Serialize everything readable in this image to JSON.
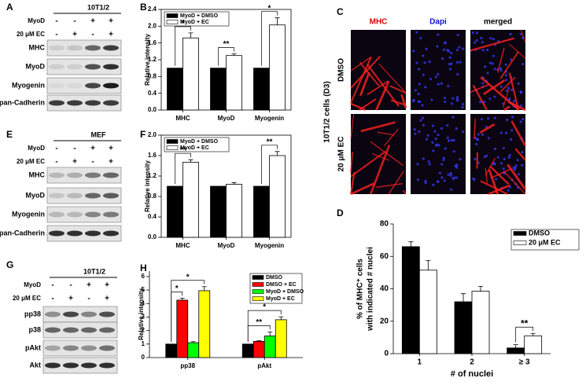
{
  "figure_labels": [
    "A",
    "B",
    "C",
    "D",
    "E",
    "F",
    "G",
    "H"
  ],
  "blots": [
    {
      "title": "10T1/2",
      "conditions": [
        {
          "label": "MyoD",
          "signs": [
            "-",
            "-",
            "+",
            "+"
          ]
        },
        {
          "label": "20 μM EC",
          "signs": [
            "-",
            "+",
            "-",
            "+"
          ]
        }
      ],
      "bands": [
        "MHC",
        "MyoD",
        "Myogenin",
        "pan-Cadherin"
      ]
    },
    {
      "title": "MEF",
      "conditions": [
        {
          "label": "MyoD",
          "signs": [
            "-",
            "-",
            "+",
            "+"
          ]
        },
        {
          "label": "20 μM EC",
          "signs": [
            "-",
            "+",
            "-",
            "+"
          ]
        }
      ],
      "bands": [
        "MHC",
        "MyoD",
        "Myogenin",
        "pan-Cadherin"
      ]
    },
    {
      "title": "10T1/2",
      "conditions": [
        {
          "label": "MyoD",
          "signs": [
            "-",
            "-",
            "+",
            "+"
          ]
        },
        {
          "label": "20 μM EC",
          "signs": [
            "-",
            "+",
            "-",
            "+"
          ]
        }
      ],
      "bands": [
        "pp38",
        "p38",
        "pAkt",
        "Akt"
      ]
    }
  ],
  "microscopy": {
    "columns": [
      "MHC",
      "Dapi",
      "merged"
    ],
    "rows": [
      "DMSO",
      "20 μM EC"
    ],
    "side_label": "10T1/2 cells (D3)"
  },
  "chart_data": [
    {
      "type": "bar",
      "ylabel": "Relative intensity",
      "categories": [
        "MHC",
        "MyoD",
        "Myogenin"
      ],
      "series": [
        {
          "name": "MyoD + DMSO",
          "color": "#000000",
          "values": [
            1,
            1,
            1
          ]
        },
        {
          "name": "MyoD + EC",
          "color": "#ffffff",
          "values": [
            1.72,
            1.3,
            2.03
          ],
          "errors": [
            0.12,
            0.04,
            0.17
          ]
        }
      ],
      "ylim": [
        0,
        2.4
      ],
      "yticks": [
        {
          "value": 0,
          "label": "0.0"
        },
        0.4,
        0.8,
        1.2,
        1.6,
        {
          "value": 2,
          "label": "2.0"
        },
        2.4
      ],
      "annotations": [
        {
          "text": "*",
          "category": 0,
          "series": [
            0,
            1
          ]
        },
        {
          "text": "**",
          "category": 1,
          "series": [
            0,
            1
          ]
        },
        {
          "text": "*",
          "category": 2,
          "series": [
            0,
            1
          ]
        }
      ]
    },
    {
      "type": "bar",
      "ylabel": "Relative intensity",
      "categories": [
        "MHC",
        "MyoD",
        "Myogenin"
      ],
      "series": [
        {
          "name": "MyoD + DMSO",
          "color": "#000000",
          "values": [
            1,
            1,
            1
          ]
        },
        {
          "name": "MyoD + EC",
          "color": "#ffffff",
          "values": [
            1.47,
            1.04,
            1.6
          ],
          "errors": [
            0.05,
            0.03,
            0.08
          ]
        }
      ],
      "ylim": [
        0,
        2
      ],
      "yticks": [
        {
          "value": 0,
          "label": "0.0"
        },
        0.4,
        0.8,
        1.2,
        1.6,
        {
          "value": 2,
          "label": "2.0"
        }
      ],
      "annotations": [
        {
          "text": "**",
          "category": 0,
          "series": [
            0,
            1
          ]
        },
        {
          "text": "**",
          "category": 2,
          "series": [
            0,
            1
          ]
        }
      ]
    },
    {
      "type": "bar",
      "ylabel": "Relative intensity",
      "categories": [
        "pp38",
        "pAkt"
      ],
      "series": [
        {
          "name": "DMSO",
          "color": "#000000",
          "values": [
            1,
            1
          ]
        },
        {
          "name": "DMSO + EC",
          "color": "#ff0000",
          "values": [
            4.25,
            1.2
          ],
          "errors": [
            0.15,
            0.05
          ]
        },
        {
          "name": "MyoD + DMSO",
          "color": "#00ff00",
          "values": [
            1.1,
            1.6
          ],
          "errors": [
            0.08,
            0.3
          ]
        },
        {
          "name": "MyoD + EC",
          "color": "#ffff00",
          "values": [
            4.95,
            2.8
          ],
          "errors": [
            0.3,
            0.22
          ]
        }
      ],
      "ylim": [
        0,
        6.4
      ],
      "yticks": [
        0,
        1,
        2,
        3,
        4,
        5,
        6
      ],
      "annotations": [
        {
          "text": "*",
          "category": 0,
          "series": [
            0,
            1
          ]
        },
        {
          "text": "*",
          "category": 0,
          "series": [
            0,
            3
          ]
        },
        {
          "text": "**",
          "category": 1,
          "series": [
            0,
            2
          ]
        },
        {
          "text": "*",
          "category": 1,
          "series": [
            0,
            3
          ]
        }
      ]
    },
    {
      "type": "bar",
      "ylabel": [
        "% of MHC⁺ cells",
        "with indicated # nuclei"
      ],
      "xlabel": "# of nuclei",
      "categories": [
        "1",
        "2",
        "≥ 3"
      ],
      "series": [
        {
          "name": "DMSO",
          "color": "#000000",
          "values": [
            66,
            32,
            3.5
          ],
          "errors": [
            3,
            5,
            2
          ]
        },
        {
          "name": "20 μM EC",
          "color": "#ffffff",
          "values": [
            51.5,
            38.5,
            11
          ],
          "errors": [
            6,
            3,
            1.5
          ]
        }
      ],
      "ylim": [
        0,
        80
      ],
      "yticks": [
        0,
        20,
        40,
        60,
        80
      ],
      "annotations": [
        {
          "text": "**",
          "category": 2,
          "series": [
            0,
            1
          ]
        }
      ]
    }
  ]
}
